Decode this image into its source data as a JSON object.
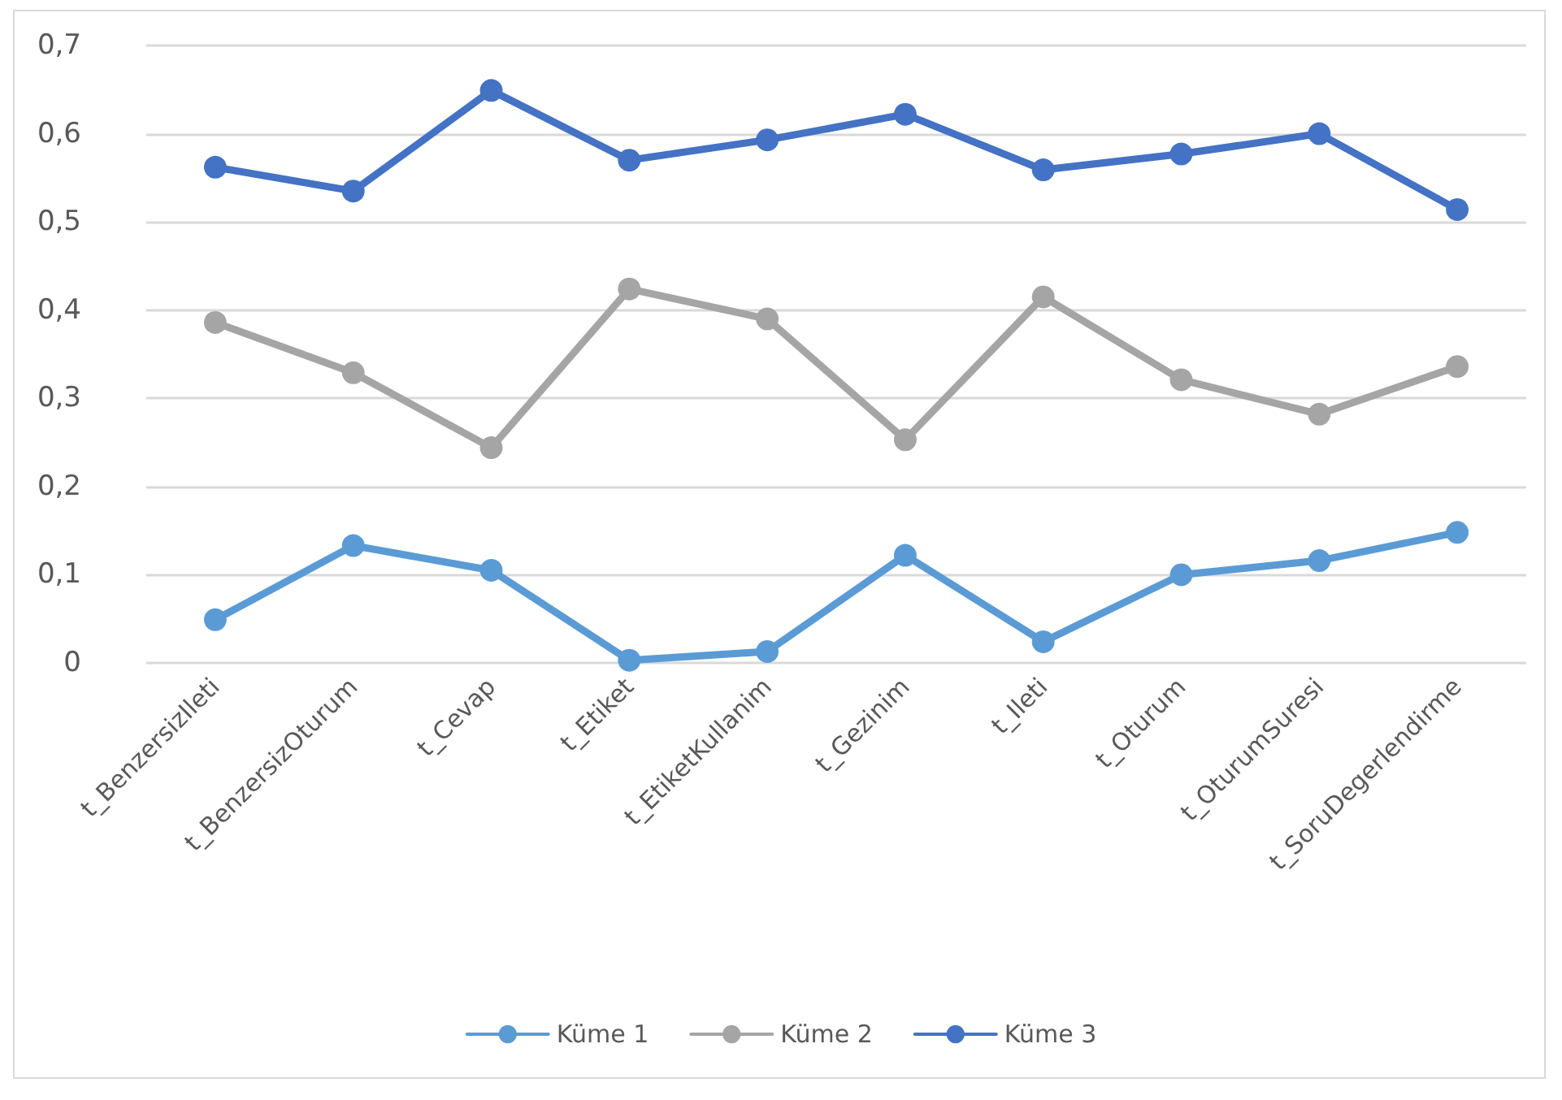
{
  "chart_data": {
    "type": "line",
    "categories": [
      "t_BenzersizIleti",
      "t_BenzersizOturum",
      "t_Cevap",
      "t_Etiket",
      "t_EtiketKullanim",
      "t_Gezinim",
      "t_Ileti",
      "t_Oturum",
      "t_OturumSuresi",
      "t_SoruDegerlendirme"
    ],
    "series": [
      {
        "name": "Küme 1",
        "color": "#5b9bd5",
        "values": [
          0.049,
          0.133,
          0.105,
          0.003,
          0.013,
          0.122,
          0.024,
          0.1,
          0.116,
          0.148
        ]
      },
      {
        "name": "Küme 2",
        "color": "#a5a5a5",
        "values": [
          0.386,
          0.329,
          0.244,
          0.424,
          0.39,
          0.253,
          0.415,
          0.321,
          0.282,
          0.336
        ]
      },
      {
        "name": "Küme 3",
        "color": "#4472c4",
        "values": [
          0.562,
          0.535,
          0.649,
          0.57,
          0.593,
          0.622,
          0.559,
          0.577,
          0.6,
          0.514
        ]
      }
    ],
    "ylim": [
      0,
      0.7
    ],
    "yticks": [
      {
        "value": 0,
        "label": "0"
      },
      {
        "value": 0.1,
        "label": "0,1"
      },
      {
        "value": 0.2,
        "label": "0,2"
      },
      {
        "value": 0.3,
        "label": "0,3"
      },
      {
        "value": 0.4,
        "label": "0,4"
      },
      {
        "value": 0.5,
        "label": "0,5"
      },
      {
        "value": 0.6,
        "label": "0,6"
      },
      {
        "value": 0.7,
        "label": "0,7"
      }
    ],
    "grid": "y",
    "legend": "bottom",
    "marker": "circle",
    "line_style": "solid"
  }
}
